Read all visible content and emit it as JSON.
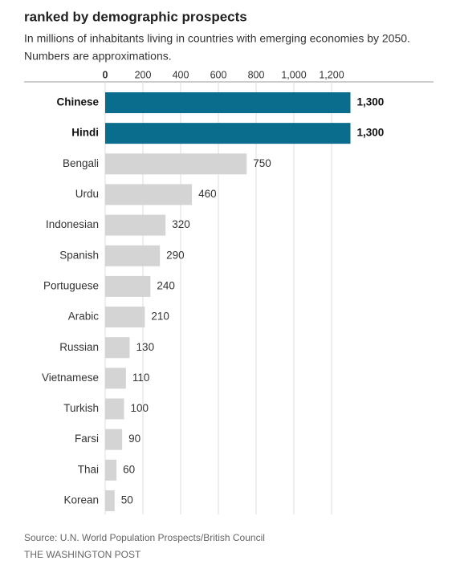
{
  "chart_data": {
    "type": "hbar",
    "title": "ranked by demographic prospects",
    "subtitle": [
      "In millions of inhabitants living in countries with emerging economies by 2050.",
      "Numbers are approximations."
    ],
    "categories": [
      "Chinese",
      "Hindi",
      "Bengali",
      "Urdu",
      "Indonesian",
      "Spanish",
      "Portuguese",
      "Arabic",
      "Russian",
      "Vietnamese",
      "Turkish",
      "Farsi",
      "Thai",
      "Korean"
    ],
    "values": [
      1300,
      1300,
      750,
      460,
      320,
      290,
      240,
      210,
      130,
      110,
      100,
      90,
      60,
      50
    ],
    "value_labels": [
      "1,300",
      "1,300",
      "750",
      "460",
      "320",
      "290",
      "240",
      "210",
      "130",
      "110",
      "100",
      "90",
      "60",
      "50"
    ],
    "colors": [
      "#0b6d8e",
      "#0b6d8e",
      "#d4d4d4",
      "#d4d4d4",
      "#d4d4d4",
      "#d4d4d4",
      "#d4d4d4",
      "#d4d4d4",
      "#d4d4d4",
      "#d4d4d4",
      "#d4d4d4",
      "#d4d4d4",
      "#d4d4d4",
      "#d4d4d4"
    ],
    "bold": [
      true,
      true,
      false,
      false,
      false,
      false,
      false,
      false,
      false,
      false,
      false,
      false,
      false,
      false
    ],
    "xlim": [
      0,
      1300
    ],
    "xticks": [
      0,
      200,
      400,
      600,
      800,
      {
        "value": 1000,
        "label": "1,000"
      },
      {
        "value": 1200,
        "label": "1,200"
      }
    ],
    "grid": true,
    "source": "Source: U.N. World Population Prospects/British Council",
    "credit": "THE WASHINGTON POST"
  }
}
